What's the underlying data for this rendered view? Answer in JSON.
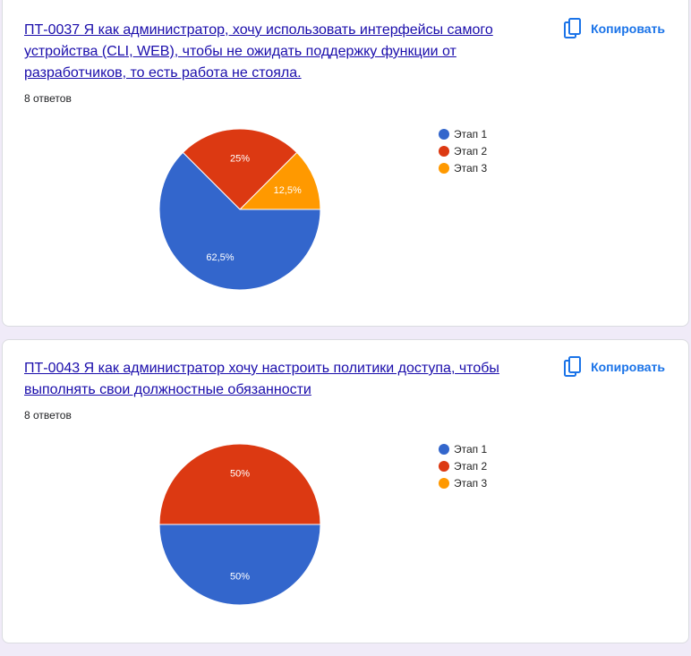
{
  "copy_label": "Копировать",
  "icons": {
    "copy": "copy-icon"
  },
  "colors": {
    "link": "#1a0dab",
    "accent": "#1a73e8",
    "page_bg": "#f0ebf8"
  },
  "questions": [
    {
      "title": "ПТ-0037 Я как администратор, хочу использовать интерфейсы самого устройства (CLI, WEB), чтобы не ожидать поддержку функции от разработчиков, то есть работа не стояла.",
      "answers_count": "8 ответов"
    },
    {
      "title": "ПТ-0043 Я как администратор хочу настроить политики доступа, чтобы выполнять свои должностные обязанности",
      "answers_count": "8 ответов"
    }
  ],
  "chart_data": [
    {
      "type": "pie",
      "categories": [
        "Этап 1",
        "Этап 2",
        "Этап 3"
      ],
      "values": [
        62.5,
        25,
        12.5
      ],
      "labels": [
        "62,5%",
        "25%",
        "12,5%"
      ],
      "colors": [
        "#3366cc",
        "#dc3912",
        "#ff9900"
      ],
      "legend_position": "right"
    },
    {
      "type": "pie",
      "categories": [
        "Этап 1",
        "Этап 2",
        "Этап 3"
      ],
      "values": [
        50,
        50,
        0
      ],
      "labels": [
        "50%",
        "50%",
        ""
      ],
      "colors": [
        "#3366cc",
        "#dc3912",
        "#ff9900"
      ],
      "legend_position": "right"
    }
  ]
}
